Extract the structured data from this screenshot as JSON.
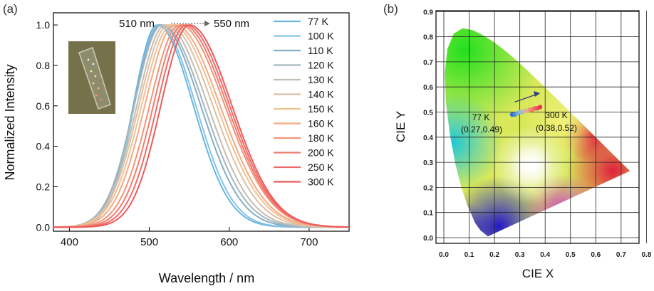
{
  "panels": {
    "a_label": "(a)",
    "b_label": "(b)"
  },
  "colors": {
    "cold": "#6cb8e0",
    "warm": "#ee5a5a"
  },
  "chart_data": [
    {
      "type": "line",
      "panel": "(a)",
      "title": "",
      "xlabel": "Wavelength / nm",
      "ylabel": "Normalized  Intensity",
      "xlim": [
        380,
        750
      ],
      "ylim": [
        -0.02,
        1.06
      ],
      "xticks": [
        "400",
        "500",
        "600",
        "700"
      ],
      "yticks": [
        "0.0",
        "0.2",
        "0.4",
        "0.6",
        "0.8",
        "1.0"
      ],
      "annotation": {
        "start": "510 nm",
        "end": "550 nm"
      },
      "legend_position": "right",
      "series": [
        {
          "name": "77 K",
          "color": "#67b6e2",
          "peak": 510,
          "fwhm": 88
        },
        {
          "name": "100 K",
          "color": "#86c3e4",
          "peak": 512,
          "fwhm": 90
        },
        {
          "name": "110 K",
          "color": "#84aec6",
          "peak": 514,
          "fwhm": 98
        },
        {
          "name": "120 K",
          "color": "#a4b6bc",
          "peak": 516,
          "fwhm": 102
        },
        {
          "name": "130 K",
          "color": "#c5bcb3",
          "peak": 520,
          "fwhm": 104
        },
        {
          "name": "140 K",
          "color": "#dbc0a6",
          "peak": 524,
          "fwhm": 108
        },
        {
          "name": "150 K",
          "color": "#f2c194",
          "peak": 528,
          "fwhm": 110
        },
        {
          "name": "160 K",
          "color": "#f4aa84",
          "peak": 532,
          "fwhm": 110
        },
        {
          "name": "180 K",
          "color": "#f39478",
          "peak": 538,
          "fwhm": 110
        },
        {
          "name": "200 K",
          "color": "#f07c6e",
          "peak": 542,
          "fwhm": 108
        },
        {
          "name": "250 K",
          "color": "#ef6b6b",
          "peak": 546,
          "fwhm": 106
        },
        {
          "name": "300 K",
          "color": "#ee5a5a",
          "peak": 550,
          "fwhm": 104
        }
      ]
    },
    {
      "type": "scatter",
      "panel": "(b)",
      "title": "",
      "xlabel": "CIE X",
      "ylabel": "CIE Y",
      "xlim": [
        0.0,
        0.8
      ],
      "ylim": [
        0.0,
        0.9
      ],
      "xticks": [
        "0.0",
        "0.1",
        "0.2",
        "0.3",
        "0.4",
        "0.5",
        "0.6",
        "0.7",
        "0.8"
      ],
      "yticks": [
        "0.0",
        "0.1",
        "0.2",
        "0.3",
        "0.4",
        "0.5",
        "0.6",
        "0.7",
        "0.8",
        "0.9"
      ],
      "grid": true,
      "labels": [
        {
          "text": "77 K",
          "sub": "(0.27,0.49)"
        },
        {
          "text": "300 K",
          "sub": "(0.38,0.52)"
        }
      ],
      "points": [
        {
          "x": 0.27,
          "y": 0.49,
          "color": "#2f6fd0"
        },
        {
          "x": 0.28,
          "y": 0.49,
          "color": "#4a8bd8"
        },
        {
          "x": 0.29,
          "y": 0.495,
          "color": "#66a7dc"
        },
        {
          "x": 0.3,
          "y": 0.5,
          "color": "#88b8d6"
        },
        {
          "x": 0.31,
          "y": 0.5,
          "color": "#aab7bf"
        },
        {
          "x": 0.32,
          "y": 0.505,
          "color": "#cdb7a4"
        },
        {
          "x": 0.33,
          "y": 0.505,
          "color": "#e5ae8a"
        },
        {
          "x": 0.34,
          "y": 0.51,
          "color": "#ee9878"
        },
        {
          "x": 0.35,
          "y": 0.51,
          "color": "#f07c6c"
        },
        {
          "x": 0.36,
          "y": 0.515,
          "color": "#ee6462"
        },
        {
          "x": 0.37,
          "y": 0.515,
          "color": "#e9505a"
        },
        {
          "x": 0.38,
          "y": 0.52,
          "color": "#e23b4d"
        }
      ],
      "arrow": {
        "from": [
          0.28,
          0.54
        ],
        "to": [
          0.38,
          0.575
        ]
      }
    }
  ]
}
